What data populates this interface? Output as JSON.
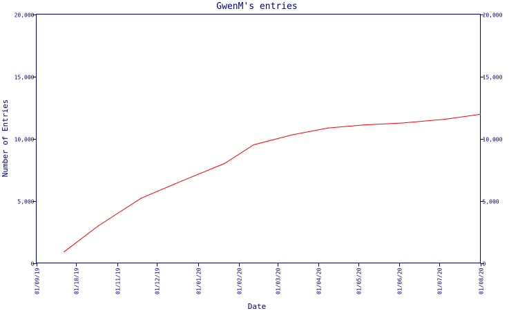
{
  "chart_data": {
    "type": "line",
    "title": "GwenM's entries",
    "xlabel": "Date",
    "ylabel": "Number of Entries",
    "x_ticks": [
      {
        "date": "2019-09-01",
        "label": "01/09/19"
      },
      {
        "date": "2019-10-01",
        "label": "01/10/19"
      },
      {
        "date": "2019-11-01",
        "label": "01/11/19"
      },
      {
        "date": "2019-12-01",
        "label": "01/12/19"
      },
      {
        "date": "2020-01-01",
        "label": "01/01/20"
      },
      {
        "date": "2020-02-01",
        "label": "01/02/20"
      },
      {
        "date": "2020-03-01",
        "label": "01/03/20"
      },
      {
        "date": "2020-04-01",
        "label": "01/04/20"
      },
      {
        "date": "2020-05-01",
        "label": "01/05/20"
      },
      {
        "date": "2020-06-01",
        "label": "01/06/20"
      },
      {
        "date": "2020-07-01",
        "label": "01/07/20"
      },
      {
        "date": "2020-08-01",
        "label": "01/08/20"
      }
    ],
    "y_ticks": [
      {
        "value": 0,
        "label": "0"
      },
      {
        "value": 5000,
        "label": "5,000"
      },
      {
        "value": 10000,
        "label": "10,000"
      },
      {
        "value": 15000,
        "label": "15,000"
      },
      {
        "value": 20000,
        "label": "20,000"
      }
    ],
    "xlim": [
      "2019-09-01",
      "2020-08-01"
    ],
    "ylim": [
      0,
      20000
    ],
    "grid": false,
    "series": [
      {
        "color": "#ff0000",
        "points": [
          {
            "x": "2019-09-22",
            "y": 900
          },
          {
            "x": "2019-10-18",
            "y": 3000
          },
          {
            "x": "2019-11-19",
            "y": 5200
          },
          {
            "x": "2019-12-20",
            "y": 6600
          },
          {
            "x": "2020-01-21",
            "y": 8000
          },
          {
            "x": "2020-02-12",
            "y": 9500
          },
          {
            "x": "2020-03-12",
            "y": 10300
          },
          {
            "x": "2020-04-08",
            "y": 10850
          },
          {
            "x": "2020-05-05",
            "y": 11100
          },
          {
            "x": "2020-06-03",
            "y": 11250
          },
          {
            "x": "2020-07-05",
            "y": 11550
          },
          {
            "x": "2020-08-01",
            "y": 11950
          }
        ]
      }
    ]
  }
}
